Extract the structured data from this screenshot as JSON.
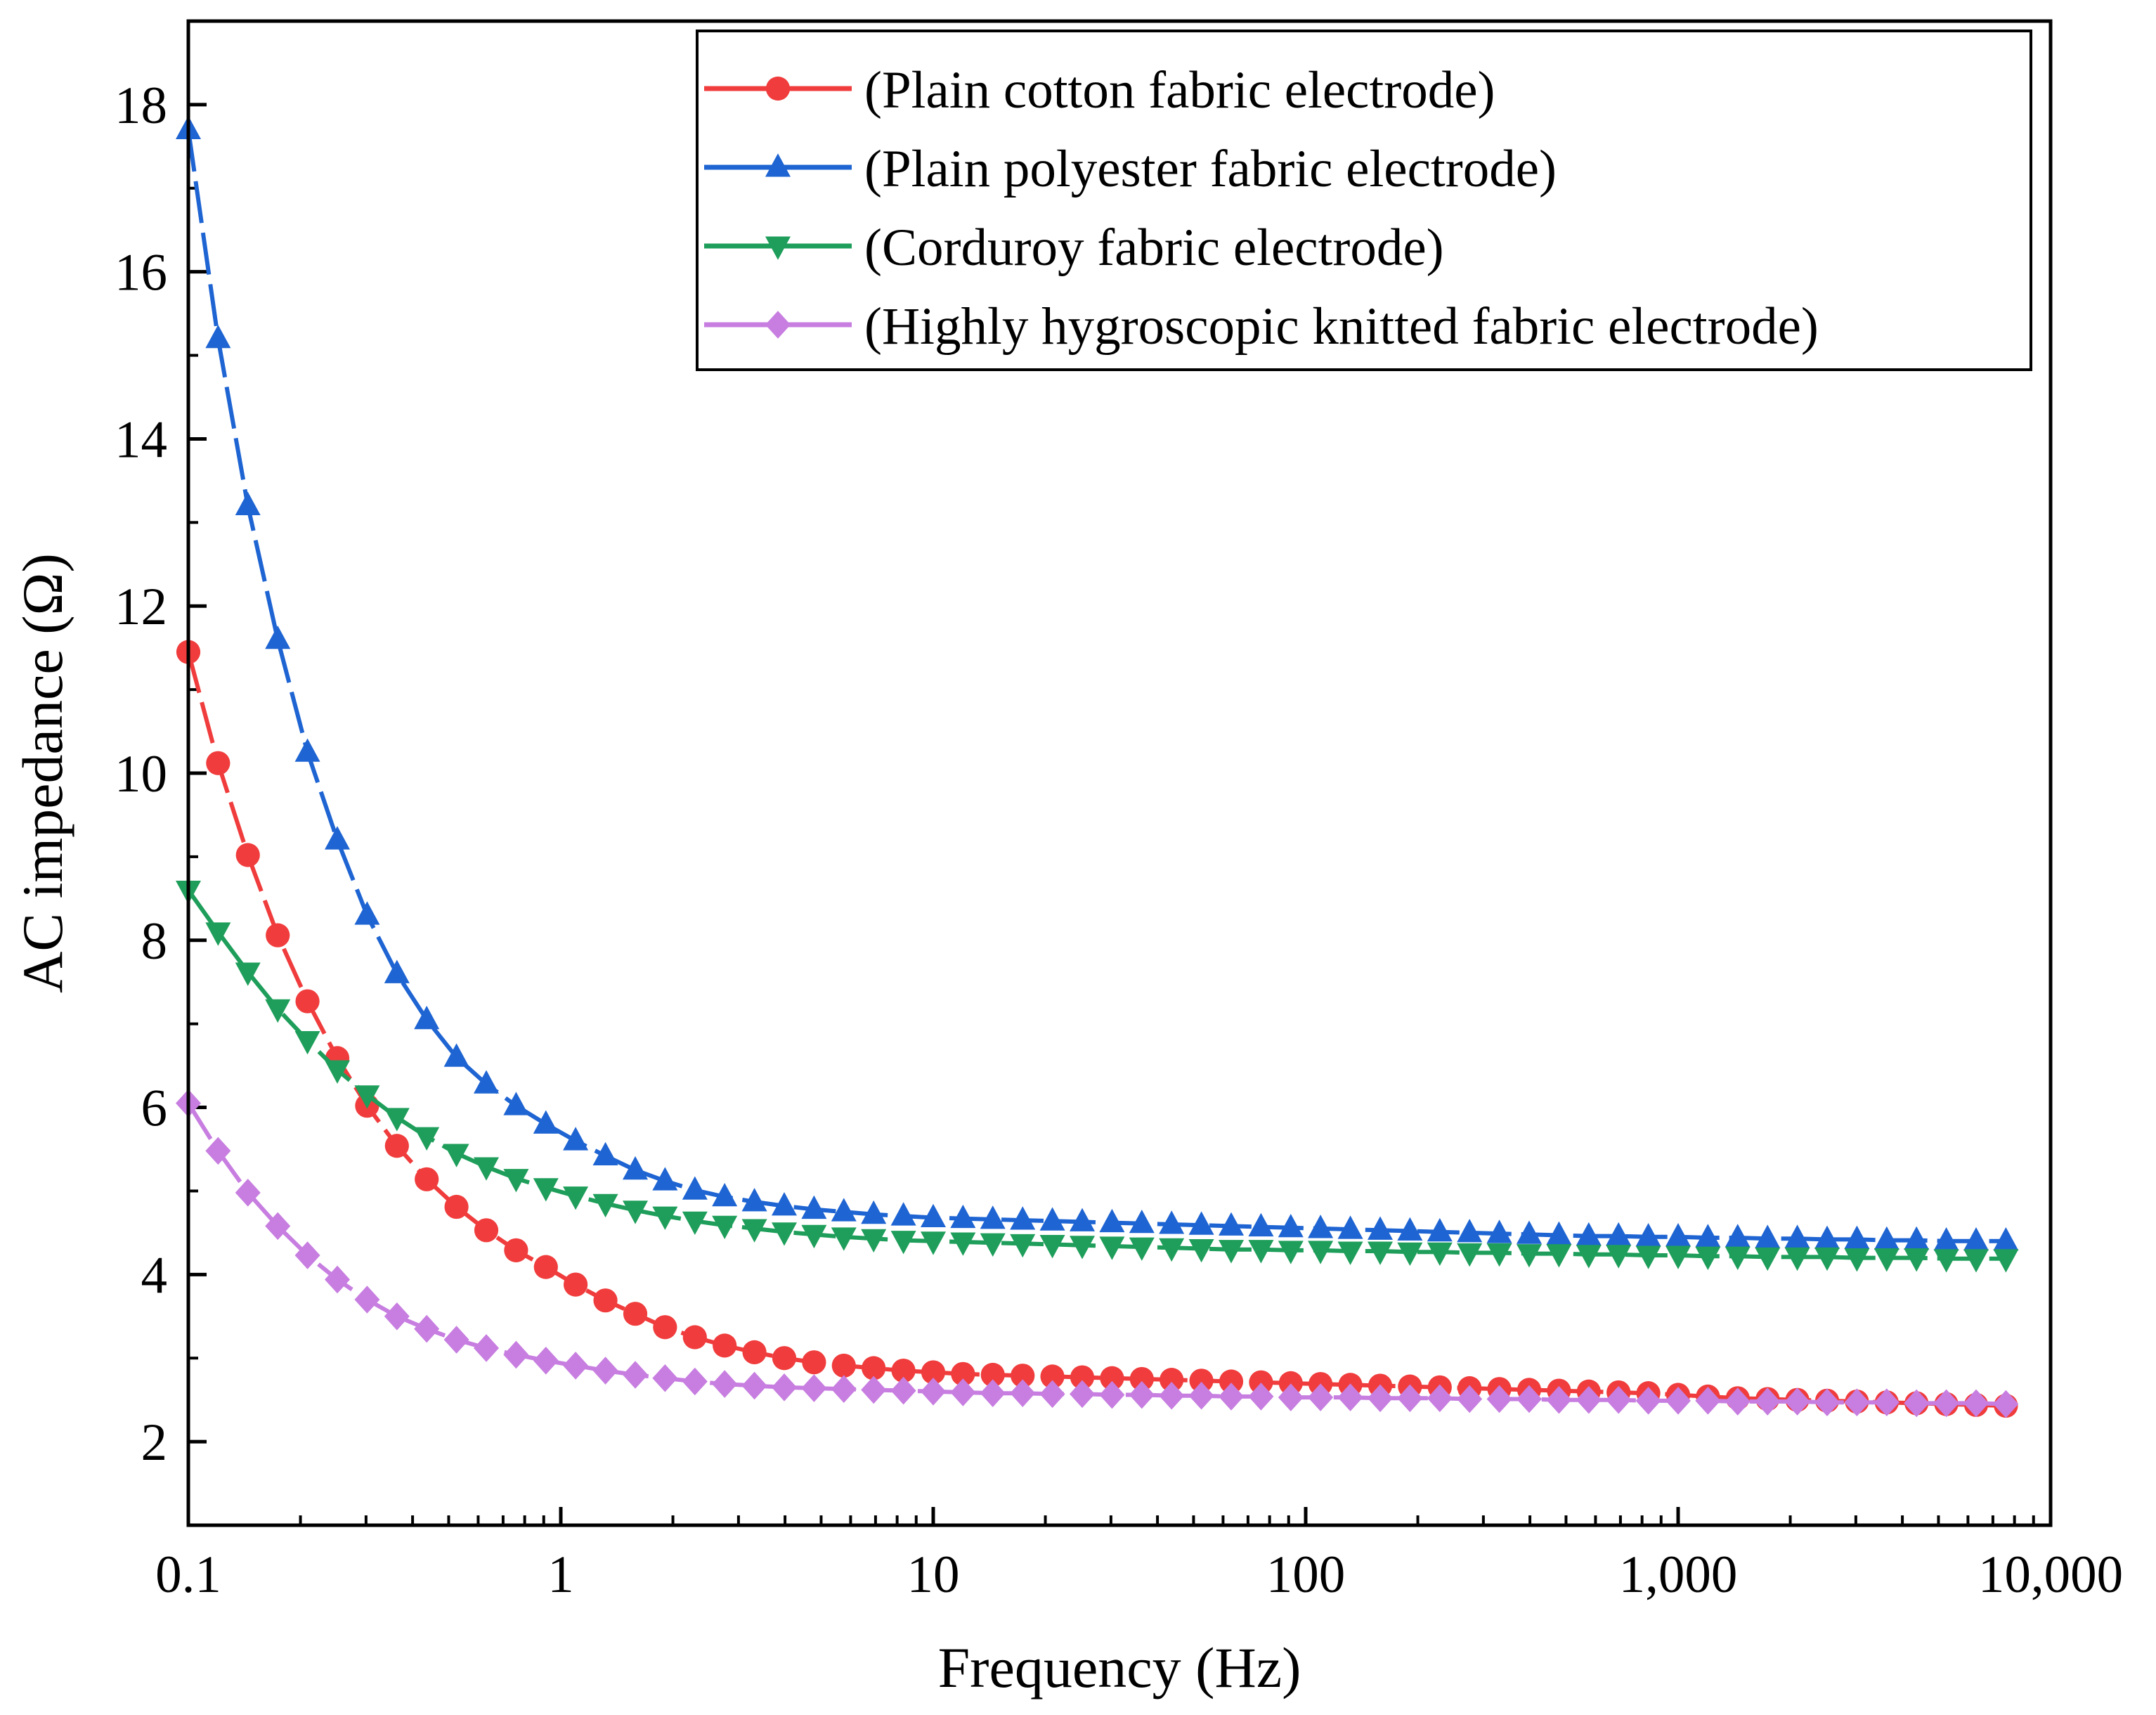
{
  "chart_data": {
    "type": "line",
    "title": "",
    "xlabel": "Frequency (Hz)",
    "ylabel": "AC impedance (Ω)",
    "xscale": "log",
    "xlim": [
      0.1,
      10000
    ],
    "ylim": [
      1,
      19
    ],
    "x_ticks": [
      0.1,
      1,
      10,
      100,
      1000,
      10000
    ],
    "x_tick_labels": [
      "0.1",
      "1",
      "10",
      "100",
      "1,000",
      "10,000"
    ],
    "y_ticks": [
      2,
      4,
      6,
      8,
      10,
      12,
      14,
      16,
      18
    ],
    "y_tick_labels": [
      "2",
      "4",
      "6",
      "8",
      "10",
      "12",
      "14",
      "16",
      "18"
    ],
    "legend_position": "top-right",
    "x": [
      0.1,
      0.1202,
      0.1445,
      0.1738,
      0.2089,
      0.2512,
      0.302,
      0.3631,
      0.4365,
      0.5248,
      0.631,
      0.7586,
      0.912,
      1.096,
      1.318,
      1.585,
      1.905,
      2.291,
      2.754,
      3.311,
      3.981,
      4.786,
      5.754,
      6.918,
      8.318,
      10.0,
      12.02,
      14.45,
      17.38,
      20.89,
      25.12,
      30.2,
      36.31,
      43.65,
      52.48,
      63.1,
      75.86,
      91.2,
      109.6,
      131.8,
      158.5,
      190.5,
      229.1,
      275.4,
      331.1,
      398.1,
      478.6,
      575.4,
      691.8,
      831.8,
      1000,
      1202,
      1445,
      1738,
      2089,
      2512,
      3020,
      3631,
      4365,
      5248,
      6310,
      7586
    ],
    "series": [
      {
        "name": "(Plain cotton fabric electrode)",
        "color": "#f03c3c",
        "marker": "circle",
        "values": [
          11.45,
          10.12,
          9.02,
          8.06,
          7.27,
          6.59,
          6.02,
          5.54,
          5.14,
          4.81,
          4.53,
          4.29,
          4.09,
          3.88,
          3.69,
          3.53,
          3.37,
          3.25,
          3.15,
          3.07,
          3.0,
          2.95,
          2.91,
          2.88,
          2.85,
          2.83,
          2.81,
          2.8,
          2.79,
          2.78,
          2.77,
          2.76,
          2.75,
          2.74,
          2.73,
          2.72,
          2.71,
          2.7,
          2.69,
          2.68,
          2.67,
          2.66,
          2.65,
          2.64,
          2.63,
          2.62,
          2.61,
          2.6,
          2.59,
          2.58,
          2.56,
          2.54,
          2.52,
          2.51,
          2.5,
          2.49,
          2.48,
          2.47,
          2.46,
          2.45,
          2.44,
          2.43
        ]
      },
      {
        "name": "(Plain polyester fabric electrode)",
        "color": "#1e64d2",
        "marker": "triangle-up",
        "values": [
          17.7,
          15.2,
          13.2,
          11.6,
          10.25,
          9.2,
          8.3,
          7.6,
          7.05,
          6.6,
          6.28,
          6.02,
          5.8,
          5.6,
          5.42,
          5.25,
          5.12,
          5.01,
          4.93,
          4.87,
          4.82,
          4.78,
          4.75,
          4.72,
          4.7,
          4.68,
          4.67,
          4.66,
          4.65,
          4.64,
          4.63,
          4.62,
          4.61,
          4.6,
          4.59,
          4.58,
          4.57,
          4.56,
          4.55,
          4.54,
          4.53,
          4.52,
          4.51,
          4.5,
          4.49,
          4.48,
          4.47,
          4.46,
          4.46,
          4.45,
          4.45,
          4.44,
          4.44,
          4.43,
          4.43,
          4.42,
          4.42,
          4.41,
          4.41,
          4.4,
          4.4,
          4.4
        ]
      },
      {
        "name": "(Corduroy fabric electrode)",
        "color": "#1e9e5a",
        "marker": "triangle-down",
        "values": [
          8.6,
          8.1,
          7.62,
          7.18,
          6.8,
          6.45,
          6.15,
          5.88,
          5.65,
          5.45,
          5.29,
          5.15,
          5.04,
          4.94,
          4.85,
          4.77,
          4.7,
          4.64,
          4.59,
          4.55,
          4.51,
          4.48,
          4.45,
          4.43,
          4.41,
          4.4,
          4.39,
          4.38,
          4.37,
          4.36,
          4.35,
          4.34,
          4.33,
          4.32,
          4.31,
          4.3,
          4.3,
          4.29,
          4.29,
          4.28,
          4.28,
          4.27,
          4.27,
          4.26,
          4.26,
          4.25,
          4.25,
          4.24,
          4.24,
          4.23,
          4.23,
          4.22,
          4.22,
          4.21,
          4.21,
          4.21,
          4.2,
          4.2,
          4.2,
          4.19,
          4.19,
          4.19
        ]
      },
      {
        "name": "(Highly hygroscopic knitted fabric electrode)",
        "color": "#c77ee0",
        "marker": "diamond",
        "values": [
          6.05,
          5.48,
          4.98,
          4.58,
          4.23,
          3.94,
          3.7,
          3.5,
          3.35,
          3.22,
          3.12,
          3.04,
          2.97,
          2.91,
          2.85,
          2.8,
          2.76,
          2.72,
          2.69,
          2.67,
          2.65,
          2.64,
          2.63,
          2.62,
          2.61,
          2.6,
          2.59,
          2.58,
          2.58,
          2.57,
          2.57,
          2.56,
          2.56,
          2.55,
          2.55,
          2.54,
          2.54,
          2.53,
          2.53,
          2.53,
          2.52,
          2.52,
          2.52,
          2.51,
          2.51,
          2.51,
          2.5,
          2.5,
          2.5,
          2.49,
          2.49,
          2.49,
          2.48,
          2.48,
          2.48,
          2.47,
          2.47,
          2.47,
          2.46,
          2.46,
          2.46,
          2.45
        ]
      }
    ]
  }
}
